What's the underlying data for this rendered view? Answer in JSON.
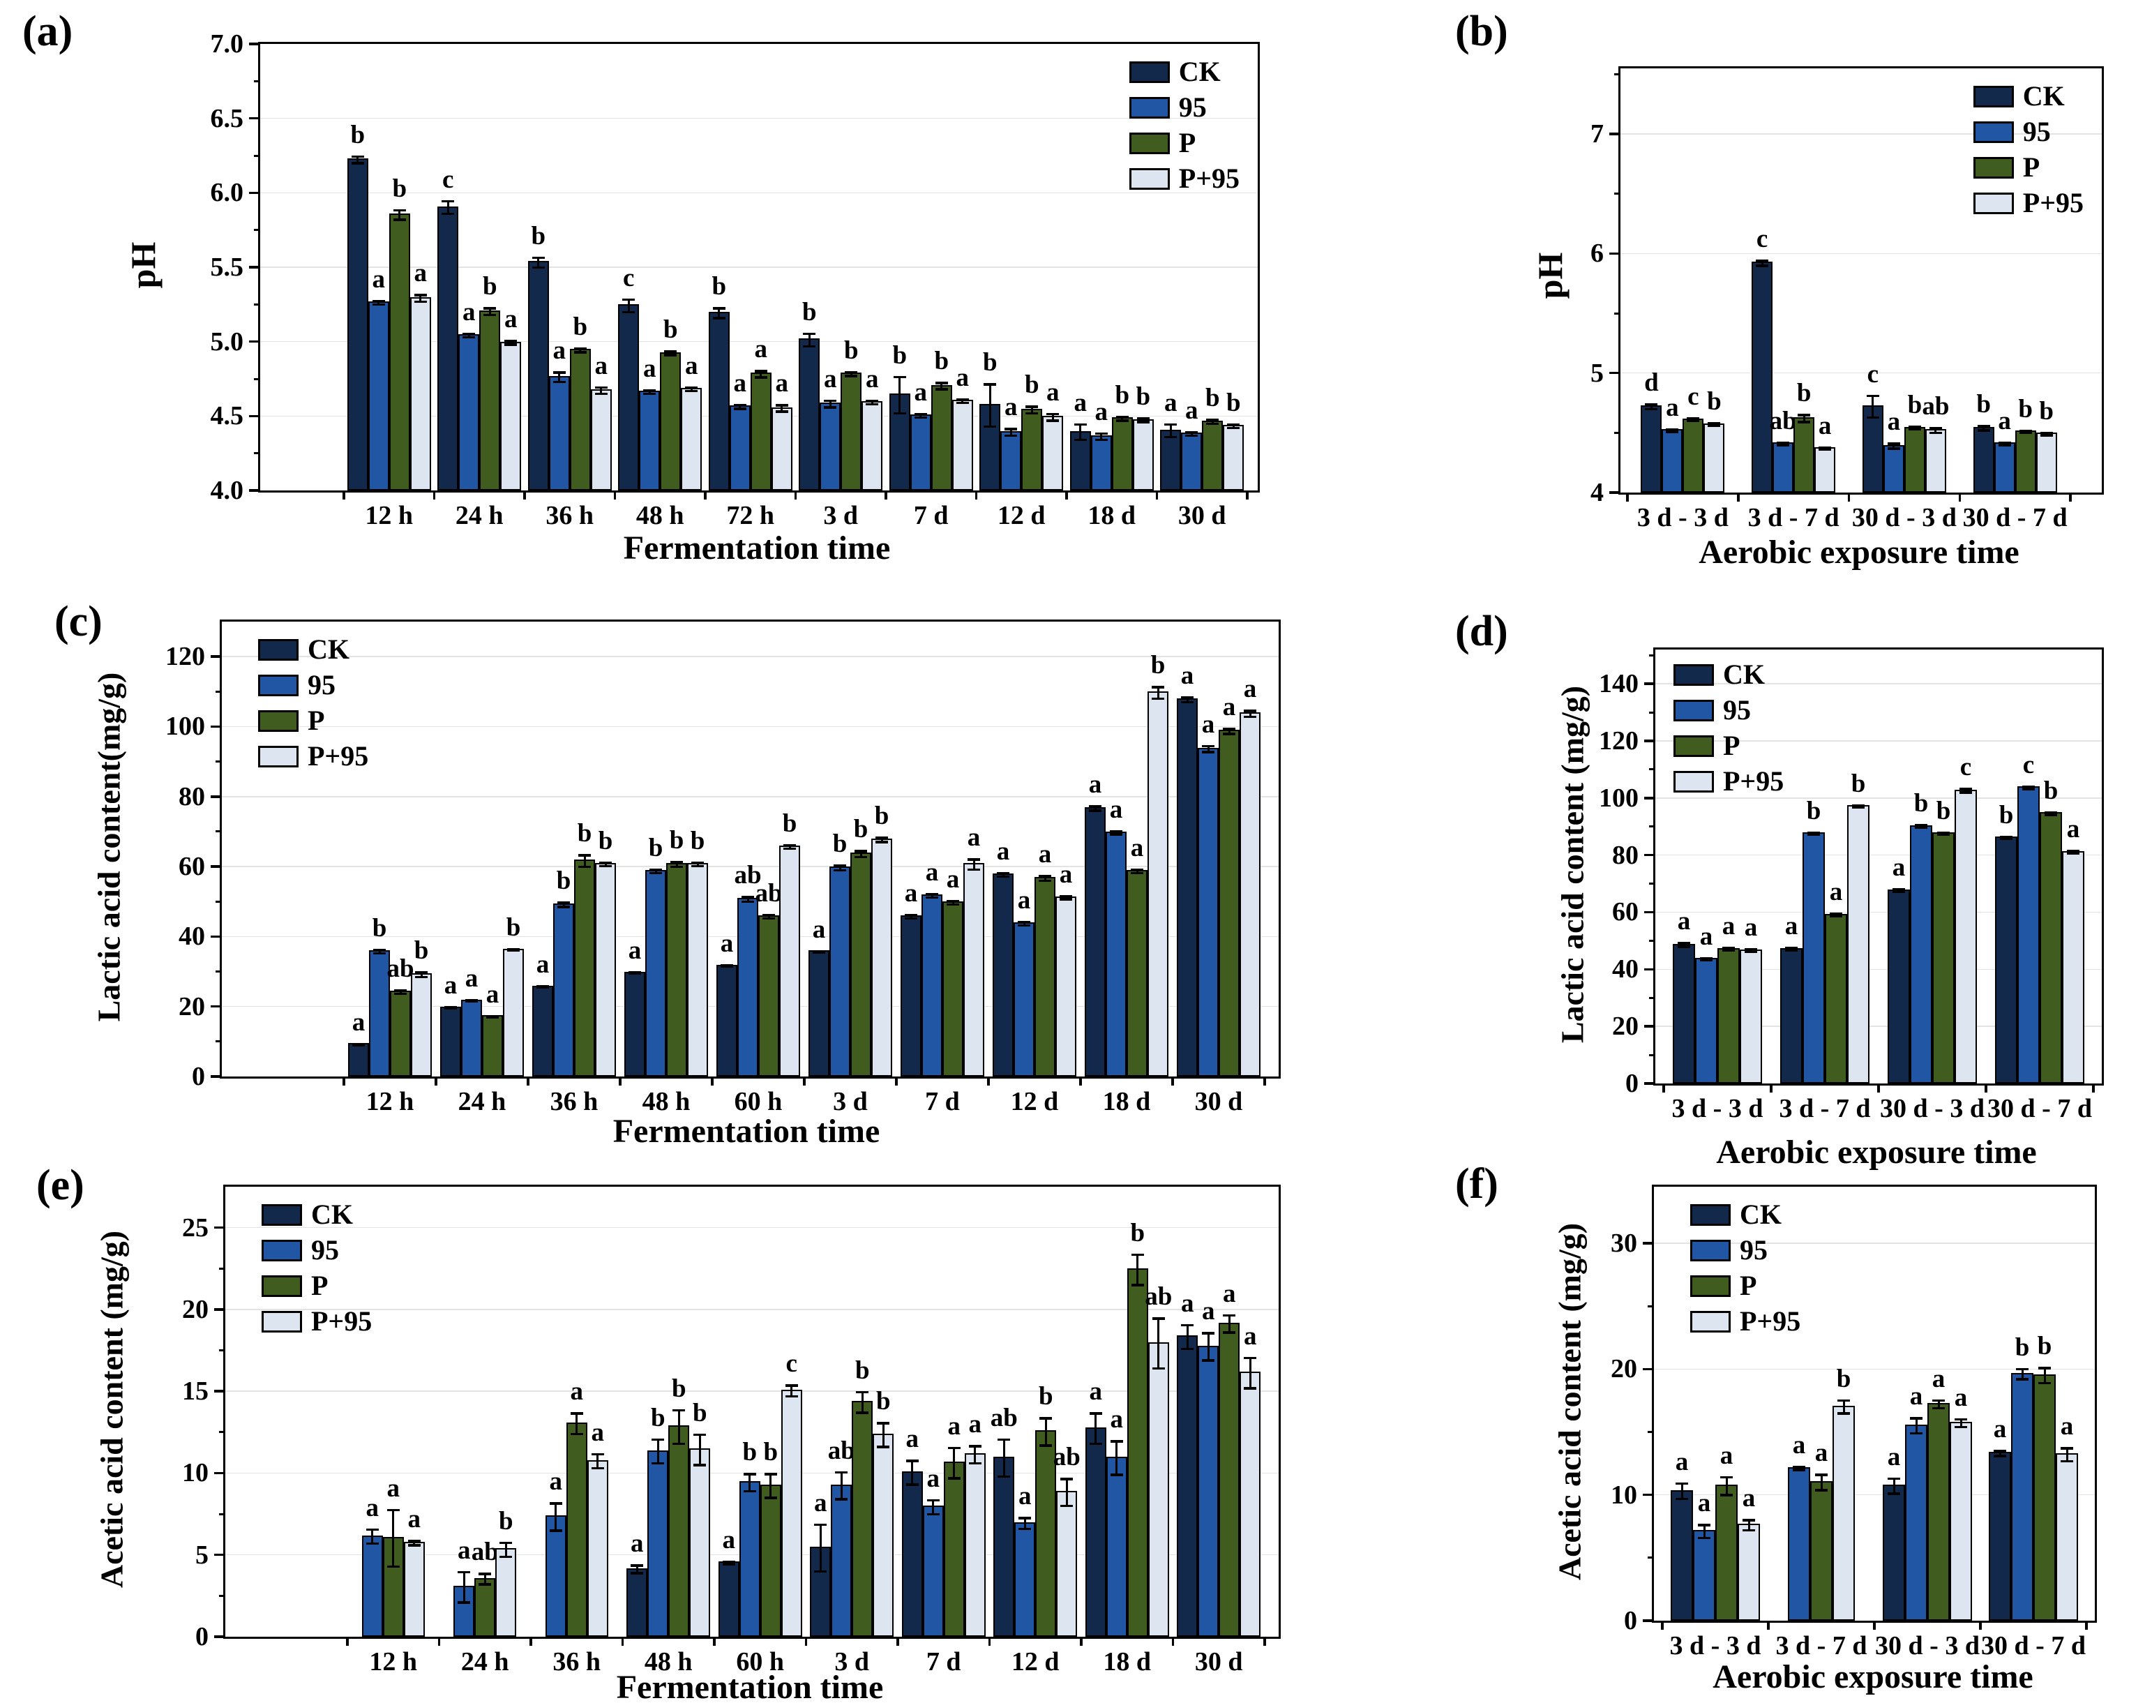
{
  "figure": {
    "background": "#ffffff"
  },
  "series_names": [
    "CK",
    "95",
    "P",
    "P+95"
  ],
  "colors": {
    "CK": "#13294b",
    "95": "#2156a5",
    "P": "#405c1f",
    "P+95": "#dde6f0"
  },
  "chart_data": [
    {
      "type": "bar",
      "panel": "(a)",
      "ylabel": "pH",
      "xlabel": "Fermentation time",
      "categories": [
        "12 h",
        "24 h",
        "36 h",
        "48 h",
        "72 h",
        "3 d",
        "7 d",
        "12 d",
        "18 d",
        "30 d"
      ],
      "ylim": [
        4.0,
        7.0
      ],
      "yticks": [
        {
          "v": 4.0,
          "label": "4.0"
        },
        {
          "v": 4.5,
          "label": "4.5"
        },
        {
          "v": 5.0,
          "label": "5.0"
        },
        {
          "v": 5.5,
          "label": "5.5"
        },
        {
          "v": 6.0,
          "label": "6.0"
        },
        {
          "v": 6.5,
          "label": "6.5"
        },
        {
          "v": 7.0,
          "label": "7.0"
        }
      ],
      "minor_step": 0.25,
      "grid": true,
      "legend_pos": "top-right",
      "series": [
        {
          "name": "CK",
          "color": "#13294b",
          "values": [
            6.23,
            5.91,
            5.54,
            5.25,
            5.2,
            5.02,
            4.65,
            4.58,
            4.4,
            4.41
          ],
          "letters": [
            "b",
            "c",
            "b",
            "c",
            "b",
            "b",
            "b",
            "b",
            "a",
            "a"
          ],
          "err": [
            0.03,
            0.05,
            0.04,
            0.05,
            0.04,
            0.05,
            0.13,
            0.15,
            0.06,
            0.05
          ]
        },
        {
          "name": "95",
          "color": "#2156a5",
          "values": [
            5.27,
            5.05,
            4.77,
            4.67,
            4.57,
            4.59,
            4.51,
            4.4,
            4.37,
            4.39
          ],
          "letters": [
            "a",
            "a",
            "a",
            "a",
            "a",
            "a",
            "a",
            "a",
            "a",
            "a"
          ],
          "err": [
            0.02,
            0.02,
            0.04,
            0.02,
            0.02,
            0.03,
            0.02,
            0.03,
            0.03,
            0.02
          ]
        },
        {
          "name": "P",
          "color": "#405c1f",
          "values": [
            5.86,
            5.21,
            4.95,
            4.93,
            4.79,
            4.79,
            4.71,
            4.55,
            4.49,
            4.47
          ],
          "letters": [
            "b",
            "b",
            "b",
            "b",
            "a",
            "b",
            "b",
            "b",
            "b",
            "b"
          ],
          "err": [
            0.04,
            0.03,
            0.02,
            0.02,
            0.03,
            0.02,
            0.03,
            0.03,
            0.02,
            0.02
          ]
        },
        {
          "name": "P+95",
          "color": "#dde6f0",
          "values": [
            5.3,
            5.0,
            4.68,
            4.69,
            4.56,
            4.6,
            4.61,
            4.5,
            4.48,
            4.44
          ],
          "letters": [
            "a",
            "a",
            "a",
            "a",
            "a",
            "a",
            "a",
            "a",
            "b",
            "b"
          ],
          "err": [
            0.03,
            0.02,
            0.03,
            0.02,
            0.03,
            0.02,
            0.02,
            0.03,
            0.02,
            0.02
          ]
        }
      ]
    },
    {
      "type": "bar",
      "panel": "(b)",
      "ylabel": "pH",
      "xlabel": "Aerobic exposure time",
      "categories": [
        "3 d - 3 d",
        "3 d - 7 d",
        "30 d - 3 d",
        "30 d - 7 d"
      ],
      "ylim": [
        4,
        7.55
      ],
      "yticks": [
        {
          "v": 4,
          "label": "4"
        },
        {
          "v": 5,
          "label": "5"
        },
        {
          "v": 6,
          "label": "6"
        },
        {
          "v": 7,
          "label": "7"
        }
      ],
      "minor_step": 0.5,
      "grid": true,
      "legend_pos": "top-right",
      "series": [
        {
          "name": "CK",
          "color": "#13294b",
          "values": [
            4.73,
            5.93,
            4.73,
            4.55
          ],
          "letters": [
            "d",
            "c",
            "c",
            "b"
          ],
          "err": [
            0.03,
            0.03,
            0.1,
            0.03
          ]
        },
        {
          "name": "95",
          "color": "#2156a5",
          "values": [
            4.53,
            4.42,
            4.4,
            4.42
          ],
          "letters": [
            "a",
            "ab",
            "a",
            "a"
          ],
          "err": [
            0.02,
            0.02,
            0.03,
            0.02
          ]
        },
        {
          "name": "P",
          "color": "#405c1f",
          "values": [
            4.62,
            4.63,
            4.55,
            4.52
          ],
          "letters": [
            "c",
            "b",
            "b",
            "b"
          ],
          "err": [
            0.02,
            0.04,
            0.02,
            0.02
          ]
        },
        {
          "name": "P+95",
          "color": "#dde6f0",
          "values": [
            4.58,
            4.38,
            4.53,
            4.5
          ],
          "letters": [
            "b",
            "a",
            "ab",
            "b"
          ],
          "err": [
            0.02,
            0.02,
            0.03,
            0.02
          ]
        }
      ]
    },
    {
      "type": "bar",
      "panel": "(c)",
      "ylabel": "Lactic acid content(mg/g)",
      "xlabel": "Fermentation time",
      "categories": [
        "12 h",
        "24 h",
        "36 h",
        "48 h",
        "60 h",
        "3 d",
        "7 d",
        "12 d",
        "18 d",
        "30 d"
      ],
      "ylim": [
        0,
        130
      ],
      "yticks": [
        {
          "v": 0,
          "label": "0"
        },
        {
          "v": 20,
          "label": "20"
        },
        {
          "v": 40,
          "label": "40"
        },
        {
          "v": 60,
          "label": "60"
        },
        {
          "v": 80,
          "label": "80"
        },
        {
          "v": 100,
          "label": "100"
        },
        {
          "v": 120,
          "label": "120"
        }
      ],
      "minor_step": 10,
      "grid": true,
      "legend_pos": "top-left",
      "series": [
        {
          "name": "CK",
          "color": "#13294b",
          "values": [
            9.5,
            20,
            26,
            30,
            32,
            36,
            46,
            58,
            77,
            108
          ],
          "letters": [
            "a",
            "a",
            "a",
            "a",
            "a",
            "a",
            "a",
            "a",
            "a",
            "a"
          ],
          "err": [
            0.5,
            0.5,
            0.5,
            0.5,
            0.5,
            0.5,
            0.8,
            0.8,
            1,
            1
          ]
        },
        {
          "name": "95",
          "color": "#2156a5",
          "values": [
            36,
            22,
            49.5,
            59,
            51,
            60,
            52,
            44,
            70,
            94
          ],
          "letters": [
            "b",
            "a",
            "b",
            "b",
            "ab",
            "b",
            "a",
            "a",
            "a",
            "a"
          ],
          "err": [
            0.8,
            0.5,
            1,
            0.8,
            1,
            1,
            0.8,
            0.8,
            0.8,
            1.2
          ]
        },
        {
          "name": "P",
          "color": "#405c1f",
          "values": [
            24.5,
            17.5,
            62,
            61,
            46,
            64,
            50,
            57,
            59,
            99
          ],
          "letters": [
            "ab",
            "a",
            "b",
            "b",
            "ab",
            "b",
            "a",
            "a",
            "a",
            "a"
          ],
          "err": [
            0.8,
            0.5,
            2,
            1,
            0.8,
            1.2,
            0.8,
            1,
            0.8,
            1
          ]
        },
        {
          "name": "P+95",
          "color": "#dde6f0",
          "values": [
            29.5,
            36.5,
            61,
            61,
            66,
            68,
            61,
            51.5,
            110,
            104
          ],
          "letters": [
            "b",
            "b",
            "b",
            "b",
            "b",
            "b",
            "a",
            "a",
            "b",
            "a"
          ],
          "err": [
            1,
            0.5,
            0.8,
            0.8,
            0.8,
            1,
            1.8,
            0.8,
            2,
            1.2
          ]
        }
      ]
    },
    {
      "type": "bar",
      "panel": "(d)",
      "ylabel": "Lactic acid content (mg/g)",
      "xlabel": "Aerobic exposure time",
      "categories": [
        "3 d - 3 d",
        "3 d - 7 d",
        "30 d - 3 d",
        "30 d - 7 d"
      ],
      "ylim": [
        0,
        152
      ],
      "yticks": [
        {
          "v": 0,
          "label": "0"
        },
        {
          "v": 20,
          "label": "20"
        },
        {
          "v": 40,
          "label": "40"
        },
        {
          "v": 60,
          "label": "60"
        },
        {
          "v": 80,
          "label": "80"
        },
        {
          "v": 100,
          "label": "100"
        },
        {
          "v": 120,
          "label": "120"
        },
        {
          "v": 140,
          "label": "140"
        }
      ],
      "minor_step": 10,
      "grid": true,
      "legend_pos": "top-left",
      "series": [
        {
          "name": "CK",
          "color": "#13294b",
          "values": [
            49,
            47.5,
            68,
            86.5
          ],
          "letters": [
            "a",
            "a",
            "a",
            "b"
          ],
          "err": [
            1,
            0.8,
            0.8,
            0.8
          ]
        },
        {
          "name": "95",
          "color": "#2156a5",
          "values": [
            44,
            88,
            90.5,
            104
          ],
          "letters": [
            "a",
            "b",
            "b",
            "c"
          ],
          "err": [
            0.8,
            0.8,
            0.8,
            0.8
          ]
        },
        {
          "name": "P",
          "color": "#405c1f",
          "values": [
            47.5,
            59.5,
            88,
            95
          ],
          "letters": [
            "a",
            "a",
            "b",
            "b"
          ],
          "err": [
            0.8,
            0.8,
            0.8,
            0.8
          ]
        },
        {
          "name": "P+95",
          "color": "#dde6f0",
          "values": [
            47,
            97.5,
            103,
            81.5
          ],
          "letters": [
            "a",
            "b",
            "c",
            "a"
          ],
          "err": [
            0.8,
            0.8,
            1,
            0.8
          ]
        }
      ]
    },
    {
      "type": "bar",
      "panel": "(e)",
      "ylabel": "Acetic acid content (mg/g)",
      "xlabel": "Fermentation time",
      "categories": [
        "12 h",
        "24 h",
        "36 h",
        "48 h",
        "60 h",
        "3 d",
        "7 d",
        "12 d",
        "18 d",
        "30 d"
      ],
      "ylim": [
        0,
        27.5
      ],
      "yticks": [
        {
          "v": 0,
          "label": "0"
        },
        {
          "v": 5,
          "label": "5"
        },
        {
          "v": 10,
          "label": "10"
        },
        {
          "v": 15,
          "label": "15"
        },
        {
          "v": 20,
          "label": "20"
        },
        {
          "v": 25,
          "label": "25"
        }
      ],
      "minor_step": 2.5,
      "grid": true,
      "legend_pos": "top-left",
      "series": [
        {
          "name": "CK",
          "color": "#13294b",
          "values": [
            null,
            null,
            null,
            4.2,
            4.6,
            5.5,
            10.1,
            11.0,
            12.8,
            18.4
          ],
          "letters": [
            null,
            null,
            null,
            "a",
            "a",
            "a",
            "a",
            "ab",
            "a",
            "a"
          ],
          "err": [
            null,
            null,
            null,
            0.3,
            0.15,
            1.5,
            0.8,
            1.2,
            1.0,
            0.8
          ]
        },
        {
          "name": "95",
          "color": "#2156a5",
          "values": [
            6.2,
            3.1,
            7.4,
            11.4,
            9.5,
            9.3,
            8.0,
            7.0,
            11.0,
            17.8
          ],
          "letters": [
            "a",
            "a",
            "a",
            "b",
            "b",
            "ab",
            "a",
            "a",
            "a",
            "a"
          ],
          "err": [
            0.5,
            1.0,
            0.9,
            0.8,
            0.6,
            0.9,
            0.5,
            0.4,
            1.1,
            0.9
          ]
        },
        {
          "name": "P",
          "color": "#405c1f",
          "values": [
            6.1,
            3.6,
            13.1,
            12.9,
            9.3,
            14.4,
            10.7,
            12.6,
            22.5,
            19.2
          ],
          "letters": [
            "a",
            "ab",
            "a",
            "b",
            "b",
            "b",
            "a",
            "b",
            "b",
            "a"
          ],
          "err": [
            1.8,
            0.4,
            0.7,
            1.1,
            0.8,
            0.7,
            1.0,
            0.9,
            1.0,
            0.6
          ]
        },
        {
          "name": "P+95",
          "color": "#dde6f0",
          "values": [
            5.8,
            5.4,
            10.8,
            11.5,
            15.1,
            12.4,
            11.2,
            8.9,
            18.0,
            16.2
          ],
          "letters": [
            "a",
            "b",
            "a",
            "b",
            "c",
            "b",
            "a",
            "ab",
            "ab",
            "a"
          ],
          "err": [
            0.2,
            0.5,
            0.5,
            1.0,
            0.4,
            0.8,
            0.6,
            0.9,
            1.6,
            1.0
          ]
        }
      ]
    },
    {
      "type": "bar",
      "panel": "(f)",
      "ylabel": "Acetic acid content (mg/g)",
      "xlabel": "Aerobic exposure time",
      "categories": [
        "3 d - 3 d",
        "3 d - 7 d",
        "30 d - 3 d",
        "30 d - 7 d"
      ],
      "ylim": [
        0,
        34.5
      ],
      "yticks": [
        {
          "v": 0,
          "label": "0"
        },
        {
          "v": 10,
          "label": "10"
        },
        {
          "v": 20,
          "label": "20"
        },
        {
          "v": 30,
          "label": "30"
        }
      ],
      "minor_step": 5,
      "grid": true,
      "legend_pos": "top-left",
      "series": [
        {
          "name": "CK",
          "color": "#13294b",
          "values": [
            10.4,
            null,
            10.8,
            13.4
          ],
          "letters": [
            "a",
            null,
            "a",
            "a"
          ],
          "err": [
            0.7,
            null,
            0.7,
            0.3
          ]
        },
        {
          "name": "95",
          "color": "#2156a5",
          "values": [
            7.2,
            12.2,
            15.6,
            19.7
          ],
          "letters": [
            "a",
            "a",
            "a",
            "b"
          ],
          "err": [
            0.6,
            0.2,
            0.7,
            0.5
          ]
        },
        {
          "name": "P",
          "color": "#405c1f",
          "values": [
            10.8,
            11.1,
            17.3,
            19.6
          ],
          "letters": [
            "a",
            "a",
            "a",
            "b"
          ],
          "err": [
            0.8,
            0.7,
            0.4,
            0.7
          ]
        },
        {
          "name": "P+95",
          "color": "#dde6f0",
          "values": [
            7.7,
            17.1,
            15.8,
            13.3
          ],
          "letters": [
            "a",
            "b",
            "a",
            "a"
          ],
          "err": [
            0.5,
            0.6,
            0.4,
            0.6
          ]
        }
      ]
    }
  ]
}
